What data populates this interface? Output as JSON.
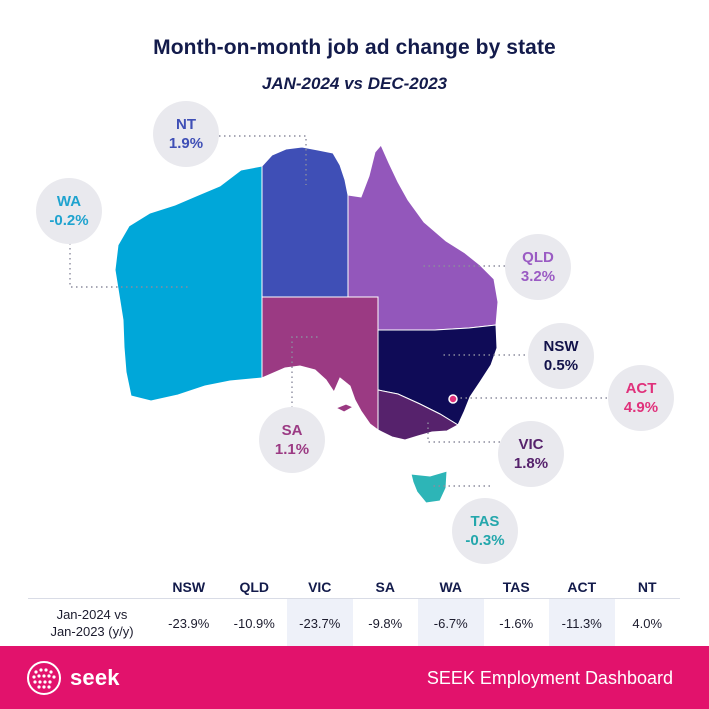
{
  "title": "Month-on-month job ad change by state",
  "subtitle": "JAN-2024 vs DEC-2023",
  "colors": {
    "WA": "#00a7d9",
    "NT": "#3f4fb6",
    "QLD": "#9357bb",
    "SA": "#9b3a83",
    "NSW": "#0f0b57",
    "VIC": "#56226c",
    "TAS": "#2db5b7",
    "ACT": "#e0317b",
    "footer": "#e2126c"
  },
  "labels": {
    "WA": {
      "name": "WA",
      "value": "-0.2%",
      "color": "#1fa3cf"
    },
    "NT": {
      "name": "NT",
      "value": "1.9%",
      "color": "#3f4fb6"
    },
    "QLD": {
      "name": "QLD",
      "value": "3.2%",
      "color": "#9a5bc3"
    },
    "NSW": {
      "name": "NSW",
      "value": "0.5%",
      "color": "#12124a"
    },
    "ACT": {
      "name": "ACT",
      "value": "4.9%",
      "color": "#e0317b"
    },
    "SA": {
      "name": "SA",
      "value": "1.1%",
      "color": "#9b3a83"
    },
    "VIC": {
      "name": "VIC",
      "value": "1.8%",
      "color": "#56226c"
    },
    "TAS": {
      "name": "TAS",
      "value": "-0.3%",
      "color": "#24a7ac"
    }
  },
  "table": {
    "row_label_line1": "Jan-2024 vs",
    "row_label_line2": "Jan-2023 (y/y)",
    "columns": [
      "NSW",
      "QLD",
      "VIC",
      "SA",
      "WA",
      "TAS",
      "ACT",
      "NT"
    ],
    "values": [
      "-23.9%",
      "-10.9%",
      "-23.7%",
      "-9.8%",
      "-6.7%",
      "-1.6%",
      "-11.3%",
      "4.0%"
    ]
  },
  "footer": {
    "logo_text": "seek",
    "dashboard_title": "SEEK Employment Dashboard"
  }
}
